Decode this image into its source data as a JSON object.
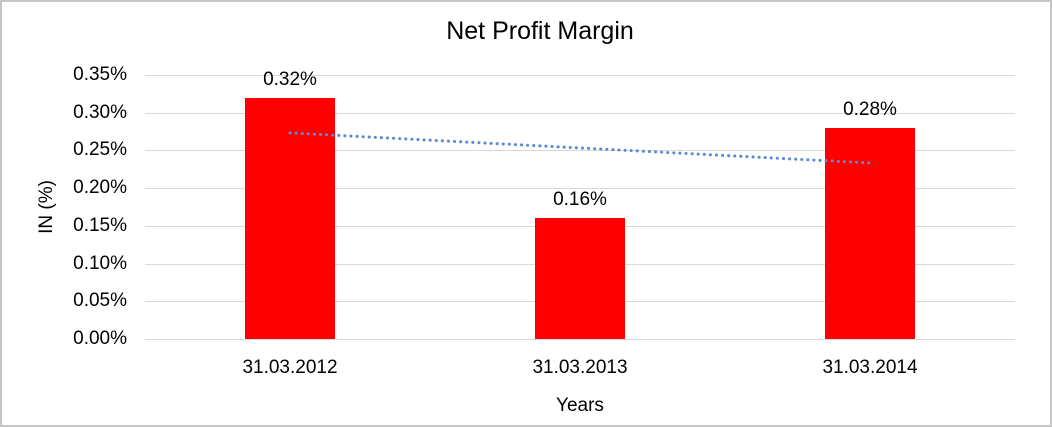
{
  "chart_data": {
    "type": "bar",
    "title": "Net Profit Margin",
    "xlabel": "Years",
    "ylabel": "IN (%)",
    "categories": [
      "31.03.2012",
      "31.03.2013",
      "31.03.2014"
    ],
    "values": [
      0.32,
      0.16,
      0.28
    ],
    "data_labels": [
      "0.32%",
      "0.16%",
      "0.28%"
    ],
    "ylim": [
      0,
      0.35
    ],
    "ytick_labels_top_to_bottom": [
      "0.35%",
      "0.30%",
      "0.25%",
      "0.20%",
      "0.15%",
      "0.10%",
      "0.05%",
      "0.00%"
    ],
    "grid": true,
    "legend": false,
    "bar_color": "#ff0000",
    "trendline": {
      "type": "linear",
      "style": "dotted",
      "color": "#5b8ad2",
      "start_value": 0.2733,
      "end_value": 0.2333
    }
  },
  "colors": {
    "background": "#ffffff",
    "frame_border": "#c6c6c6",
    "gridline": "#d9d9d9",
    "text": "#000000"
  }
}
